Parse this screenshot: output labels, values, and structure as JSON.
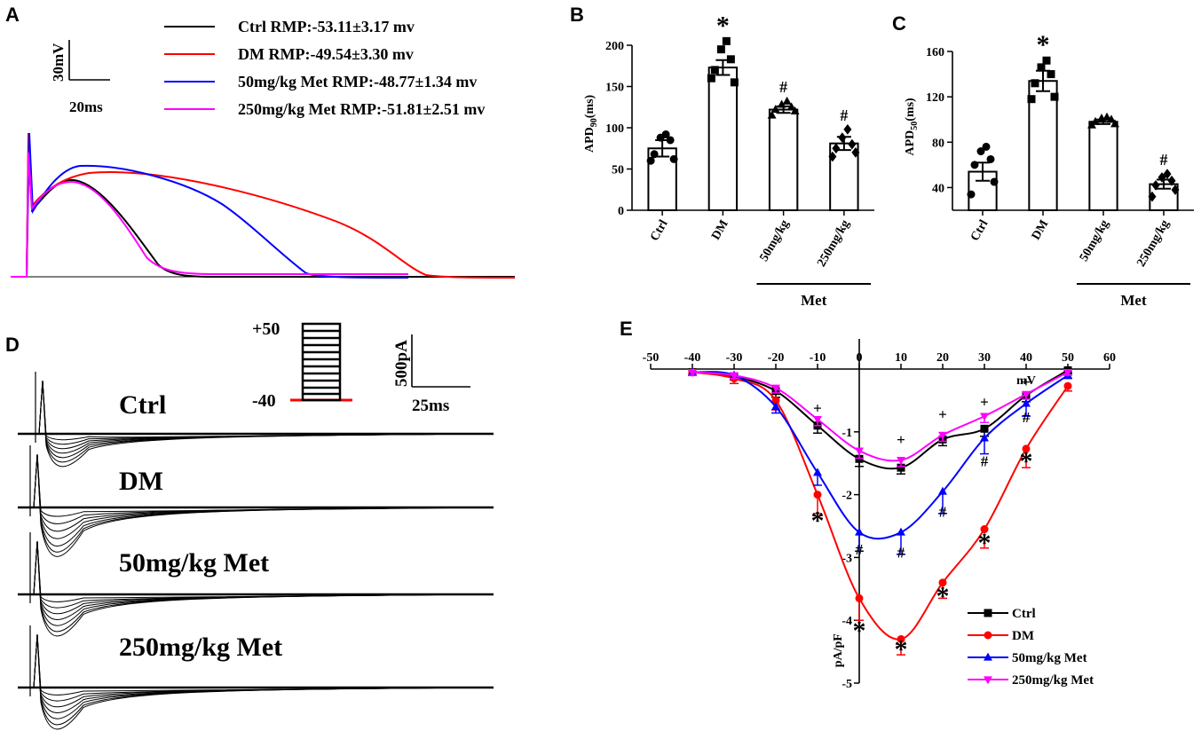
{
  "panels": {
    "a": "A",
    "b": "B",
    "c": "C",
    "d": "D",
    "e": "E"
  },
  "panel_a": {
    "scale_v": "30mV",
    "scale_t": "20ms",
    "legend": [
      {
        "label": "Ctrl RMP:-53.11±3.17 mv",
        "color": "#000000"
      },
      {
        "label": "DM RMP:-49.54±3.30 mv",
        "color": "#ff0000"
      },
      {
        "label": "50mg/kg Met RMP:-48.77±1.34 mv",
        "color": "#0000ff"
      },
      {
        "label": "250mg/kg Met RMP:-51.81±2.51 mv",
        "color": "#ff00ff"
      }
    ]
  },
  "panel_d": {
    "protocol_top": "+50",
    "protocol_bottom": "-40",
    "scale_i": "500pA",
    "scale_t": "25ms",
    "trace_labels": [
      "Ctrl",
      "DM",
      "50mg/kg Met",
      "250mg/kg Met"
    ]
  },
  "chart_data": [
    {
      "id": "B",
      "type": "bar",
      "ylabel": "APD90(ms)",
      "ylim": [
        0,
        200
      ],
      "yticks": [
        0,
        50,
        100,
        150,
        200
      ],
      "categories": [
        "Ctrl",
        "DM",
        "50mg/kg",
        "250mg/kg"
      ],
      "values": [
        75,
        173,
        122,
        81
      ],
      "sem": [
        10,
        9,
        4,
        8
      ],
      "points": [
        [
          60,
          62,
          68,
          85,
          88,
          92
        ],
        [
          160,
          155,
          170,
          183,
          195,
          205
        ],
        [
          115,
          120,
          122,
          125,
          128,
          132
        ],
        [
          65,
          70,
          75,
          80,
          88,
          98
        ]
      ],
      "markers": [
        "circle",
        "square",
        "triangle",
        "diamond"
      ],
      "annotations": [
        "",
        "*",
        "#",
        "#"
      ],
      "group_label": "Met"
    },
    {
      "id": "C",
      "type": "bar",
      "ylabel": "APD50(ms)",
      "ylim": [
        20,
        160
      ],
      "yticks": [
        40,
        80,
        120,
        160
      ],
      "categories": [
        "Ctrl",
        "DM",
        "50mg/kg",
        "250mg/kg"
      ],
      "values": [
        54,
        134,
        98,
        43
      ],
      "sem": [
        8,
        9,
        2,
        4
      ],
      "points": [
        [
          34,
          45,
          60,
          65,
          72,
          76
        ],
        [
          118,
          120,
          132,
          140,
          146,
          152
        ],
        [
          95,
          96,
          98,
          100,
          101,
          102
        ],
        [
          32,
          38,
          42,
          46,
          49,
          52
        ]
      ],
      "markers": [
        "circle",
        "square",
        "triangle",
        "diamond"
      ],
      "annotations": [
        "",
        "*",
        "",
        "#"
      ],
      "group_label": "Met"
    },
    {
      "id": "E",
      "type": "line",
      "xlabel": "mV",
      "ylabel": "pA/pF",
      "xlim": [
        -50,
        60
      ],
      "ylim": [
        -5,
        0
      ],
      "xticks": [
        -50,
        -40,
        -30,
        -20,
        -10,
        0,
        10,
        20,
        30,
        40,
        50,
        60
      ],
      "yticks": [
        0,
        -1,
        -2,
        -3,
        -4,
        -5
      ],
      "x": [
        -40,
        -30,
        -20,
        -10,
        0,
        10,
        20,
        30,
        40,
        50
      ],
      "series": [
        {
          "name": "Ctrl",
          "color": "#000000",
          "marker": "square",
          "values": [
            -0.05,
            -0.12,
            -0.35,
            -0.9,
            -1.43,
            -1.57,
            -1.12,
            -0.95,
            -0.42,
            -0.02
          ],
          "sem": [
            0.05,
            0.05,
            0.1,
            0.12,
            0.12,
            0.1,
            0.1,
            0.12,
            0.1,
            0.05
          ]
        },
        {
          "name": "DM",
          "color": "#ff0000",
          "marker": "circle",
          "values": [
            -0.05,
            -0.15,
            -0.5,
            -2.0,
            -3.65,
            -4.3,
            -3.4,
            -2.55,
            -1.27,
            -0.27
          ],
          "sem": [
            0.05,
            0.08,
            0.15,
            0.3,
            0.35,
            0.25,
            0.25,
            0.3,
            0.3,
            0.08
          ]
        },
        {
          "name": "50mg/kg Met",
          "color": "#0000ff",
          "marker": "triangle-up",
          "values": [
            -0.05,
            -0.1,
            -0.6,
            -1.65,
            -2.6,
            -2.6,
            -1.95,
            -1.1,
            -0.55,
            -0.1
          ],
          "sem": [
            0.05,
            0.05,
            0.1,
            0.2,
            0.3,
            0.35,
            0.35,
            0.25,
            0.2,
            0.05
          ]
        },
        {
          "name": "250mg/kg Met",
          "color": "#ff00ff",
          "marker": "triangle-down",
          "values": [
            -0.05,
            -0.1,
            -0.3,
            -0.8,
            -1.3,
            -1.45,
            -1.05,
            -0.75,
            -0.4,
            -0.05
          ],
          "sem": [
            0.05,
            0.05,
            0.08,
            0.1,
            0.12,
            0.1,
            0.1,
            0.1,
            0.08,
            0.05
          ]
        }
      ],
      "annotations": [
        {
          "x": -10,
          "y": -2.55,
          "text": "*",
          "color": "#000000"
        },
        {
          "x": 0,
          "y": -4.3,
          "text": "*",
          "color": "#000000"
        },
        {
          "x": 10,
          "y": -4.6,
          "text": "*",
          "color": "#000000"
        },
        {
          "x": 20,
          "y": -3.75,
          "text": "*",
          "color": "#000000"
        },
        {
          "x": 30,
          "y": -2.9,
          "text": "*",
          "color": "#000000"
        },
        {
          "x": 40,
          "y": -1.6,
          "text": "*",
          "color": "#000000"
        },
        {
          "x": 0,
          "y": -2.95,
          "text": "#",
          "color": "#0000ff"
        },
        {
          "x": 10,
          "y": -3.0,
          "text": "#",
          "color": "#0000ff"
        },
        {
          "x": 20,
          "y": -2.35,
          "text": "#",
          "color": "#0000ff"
        },
        {
          "x": 30,
          "y": -1.55,
          "text": "#",
          "color": "#0000ff"
        },
        {
          "x": 40,
          "y": -0.85,
          "text": "#",
          "color": "#0000ff"
        },
        {
          "x": -10,
          "y": -0.7,
          "text": "+",
          "color": "#000000"
        },
        {
          "x": 10,
          "y": -1.2,
          "text": "+",
          "color": "#000000"
        },
        {
          "x": 20,
          "y": -0.8,
          "text": "+",
          "color": "#000000"
        },
        {
          "x": 30,
          "y": -0.6,
          "text": "+",
          "color": "#000000"
        },
        {
          "x": 40,
          "y": -0.28,
          "text": "+",
          "color": "#000000"
        }
      ]
    }
  ]
}
